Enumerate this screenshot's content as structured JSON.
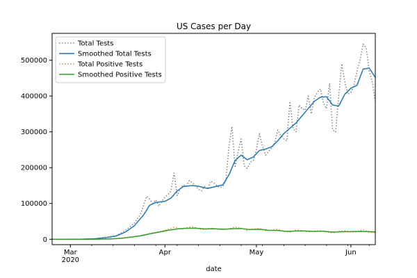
{
  "chart_data": {
    "type": "line",
    "title": "US Cases per Day",
    "xlabel": "date",
    "ylabel": "",
    "ylim": [
      -15000,
      575000
    ],
    "xlim": [
      "2020-02-24",
      "2020-06-09"
    ],
    "grid": false,
    "legend_position": "top-left",
    "x_ticks": [
      {
        "date": "2020-03-01",
        "label": "Mar",
        "sublabel": "2020"
      },
      {
        "date": "2020-04-01",
        "label": "Apr",
        "sublabel": ""
      },
      {
        "date": "2020-05-01",
        "label": "May",
        "sublabel": ""
      },
      {
        "date": "2020-06-01",
        "label": "Jun",
        "sublabel": ""
      }
    ],
    "y_ticks": [
      0,
      100000,
      200000,
      300000,
      400000,
      500000
    ],
    "series": [
      {
        "name": "Total Tests",
        "color": "#7f7f7f",
        "dashed": true,
        "points": [
          [
            "2020-02-24",
            0
          ],
          [
            "2020-03-01",
            100
          ],
          [
            "2020-03-05",
            500
          ],
          [
            "2020-03-09",
            1500
          ],
          [
            "2020-03-13",
            6000
          ],
          [
            "2020-03-16",
            10000
          ],
          [
            "2020-03-19",
            25000
          ],
          [
            "2020-03-22",
            45000
          ],
          [
            "2020-03-24",
            70000
          ],
          [
            "2020-03-26",
            120000
          ],
          [
            "2020-03-27",
            112000
          ],
          [
            "2020-03-28",
            100000
          ],
          [
            "2020-03-29",
            110000
          ],
          [
            "2020-03-30",
            92000
          ],
          [
            "2020-03-31",
            105000
          ],
          [
            "2020-04-01",
            118000
          ],
          [
            "2020-04-02",
            125000
          ],
          [
            "2020-04-03",
            135000
          ],
          [
            "2020-04-04",
            185000
          ],
          [
            "2020-04-05",
            122000
          ],
          [
            "2020-04-06",
            140000
          ],
          [
            "2020-04-07",
            152000
          ],
          [
            "2020-04-08",
            148000
          ],
          [
            "2020-04-09",
            164000
          ],
          [
            "2020-04-10",
            158000
          ],
          [
            "2020-04-11",
            150000
          ],
          [
            "2020-04-12",
            140000
          ],
          [
            "2020-04-13",
            135000
          ],
          [
            "2020-04-14",
            148000
          ],
          [
            "2020-04-15",
            140000
          ],
          [
            "2020-04-16",
            162000
          ],
          [
            "2020-04-17",
            158000
          ],
          [
            "2020-04-18",
            150000
          ],
          [
            "2020-04-19",
            144000
          ],
          [
            "2020-04-20",
            148000
          ],
          [
            "2020-04-21",
            165000
          ],
          [
            "2020-04-22",
            260000
          ],
          [
            "2020-04-23",
            315000
          ],
          [
            "2020-04-24",
            200000
          ],
          [
            "2020-04-25",
            245000
          ],
          [
            "2020-04-26",
            280000
          ],
          [
            "2020-04-27",
            205000
          ],
          [
            "2020-04-28",
            198000
          ],
          [
            "2020-04-29",
            215000
          ],
          [
            "2020-04-30",
            220000
          ],
          [
            "2020-05-01",
            250000
          ],
          [
            "2020-05-02",
            295000
          ],
          [
            "2020-05-03",
            260000
          ],
          [
            "2020-05-04",
            235000
          ],
          [
            "2020-05-05",
            245000
          ],
          [
            "2020-05-06",
            255000
          ],
          [
            "2020-05-07",
            270000
          ],
          [
            "2020-05-08",
            305000
          ],
          [
            "2020-05-09",
            290000
          ],
          [
            "2020-05-10",
            280000
          ],
          [
            "2020-05-11",
            275000
          ],
          [
            "2020-05-12",
            385000
          ],
          [
            "2020-05-13",
            310000
          ],
          [
            "2020-05-14",
            300000
          ],
          [
            "2020-05-15",
            375000
          ],
          [
            "2020-05-16",
            365000
          ],
          [
            "2020-05-17",
            360000
          ],
          [
            "2020-05-18",
            400000
          ],
          [
            "2020-05-19",
            350000
          ],
          [
            "2020-05-20",
            395000
          ],
          [
            "2020-05-21",
            410000
          ],
          [
            "2020-05-22",
            420000
          ],
          [
            "2020-05-23",
            380000
          ],
          [
            "2020-05-24",
            365000
          ],
          [
            "2020-05-25",
            435000
          ],
          [
            "2020-05-26",
            305000
          ],
          [
            "2020-05-27",
            300000
          ],
          [
            "2020-05-28",
            400000
          ],
          [
            "2020-05-29",
            490000
          ],
          [
            "2020-05-30",
            440000
          ],
          [
            "2020-05-31",
            405000
          ],
          [
            "2020-06-01",
            410000
          ],
          [
            "2020-06-02",
            430000
          ],
          [
            "2020-06-03",
            470000
          ],
          [
            "2020-06-04",
            500000
          ],
          [
            "2020-06-05",
            545000
          ],
          [
            "2020-06-06",
            535000
          ],
          [
            "2020-06-07",
            470000
          ],
          [
            "2020-06-08",
            440000
          ],
          [
            "2020-06-09",
            385000
          ]
        ]
      },
      {
        "name": "Smoothed Total Tests",
        "color": "#1f77b4",
        "dashed": false,
        "points": [
          [
            "2020-02-24",
            0
          ],
          [
            "2020-03-01",
            100
          ],
          [
            "2020-03-05",
            400
          ],
          [
            "2020-03-09",
            1500
          ],
          [
            "2020-03-13",
            5000
          ],
          [
            "2020-03-16",
            9000
          ],
          [
            "2020-03-19",
            20000
          ],
          [
            "2020-03-22",
            38000
          ],
          [
            "2020-03-25",
            68000
          ],
          [
            "2020-03-27",
            95000
          ],
          [
            "2020-03-29",
            103000
          ],
          [
            "2020-04-01",
            106000
          ],
          [
            "2020-04-03",
            115000
          ],
          [
            "2020-04-05",
            135000
          ],
          [
            "2020-04-07",
            147000
          ],
          [
            "2020-04-10",
            150000
          ],
          [
            "2020-04-12",
            148000
          ],
          [
            "2020-04-15",
            142000
          ],
          [
            "2020-04-18",
            148000
          ],
          [
            "2020-04-20",
            152000
          ],
          [
            "2020-04-22",
            180000
          ],
          [
            "2020-04-24",
            220000
          ],
          [
            "2020-04-26",
            235000
          ],
          [
            "2020-04-28",
            222000
          ],
          [
            "2020-04-30",
            230000
          ],
          [
            "2020-05-02",
            248000
          ],
          [
            "2020-05-04",
            252000
          ],
          [
            "2020-05-06",
            258000
          ],
          [
            "2020-05-08",
            275000
          ],
          [
            "2020-05-10",
            295000
          ],
          [
            "2020-05-12",
            310000
          ],
          [
            "2020-05-14",
            325000
          ],
          [
            "2020-05-16",
            345000
          ],
          [
            "2020-05-18",
            365000
          ],
          [
            "2020-05-20",
            385000
          ],
          [
            "2020-05-22",
            397000
          ],
          [
            "2020-05-24",
            398000
          ],
          [
            "2020-05-26",
            375000
          ],
          [
            "2020-05-28",
            372000
          ],
          [
            "2020-05-30",
            405000
          ],
          [
            "2020-06-01",
            422000
          ],
          [
            "2020-06-03",
            430000
          ],
          [
            "2020-06-05",
            475000
          ],
          [
            "2020-06-07",
            478000
          ],
          [
            "2020-06-09",
            452000
          ]
        ]
      },
      {
        "name": "Total Positive Tests",
        "color": "#ff7f0e",
        "dashed": true,
        "points": [
          [
            "2020-02-24",
            0
          ],
          [
            "2020-03-05",
            50
          ],
          [
            "2020-03-10",
            300
          ],
          [
            "2020-03-15",
            1500
          ],
          [
            "2020-03-18",
            3500
          ],
          [
            "2020-03-21",
            7000
          ],
          [
            "2020-03-24",
            10000
          ],
          [
            "2020-03-27",
            16000
          ],
          [
            "2020-03-30",
            21000
          ],
          [
            "2020-04-02",
            27000
          ],
          [
            "2020-04-04",
            34000
          ],
          [
            "2020-04-06",
            29000
          ],
          [
            "2020-04-08",
            32000
          ],
          [
            "2020-04-10",
            35000
          ],
          [
            "2020-04-12",
            29000
          ],
          [
            "2020-04-14",
            27000
          ],
          [
            "2020-04-16",
            31000
          ],
          [
            "2020-04-18",
            29000
          ],
          [
            "2020-04-20",
            27000
          ],
          [
            "2020-04-22",
            29000
          ],
          [
            "2020-04-24",
            34000
          ],
          [
            "2020-04-26",
            31000
          ],
          [
            "2020-04-28",
            25000
          ],
          [
            "2020-04-30",
            29000
          ],
          [
            "2020-05-02",
            30000
          ],
          [
            "2020-05-04",
            24000
          ],
          [
            "2020-05-06",
            25000
          ],
          [
            "2020-05-08",
            28000
          ],
          [
            "2020-05-10",
            22000
          ],
          [
            "2020-05-12",
            20000
          ],
          [
            "2020-05-14",
            26000
          ],
          [
            "2020-05-16",
            24000
          ],
          [
            "2020-05-18",
            21000
          ],
          [
            "2020-05-20",
            23000
          ],
          [
            "2020-05-22",
            24000
          ],
          [
            "2020-05-24",
            20000
          ],
          [
            "2020-05-26",
            18000
          ],
          [
            "2020-05-28",
            22000
          ],
          [
            "2020-05-30",
            24000
          ],
          [
            "2020-06-01",
            20000
          ],
          [
            "2020-06-03",
            21000
          ],
          [
            "2020-06-05",
            27000
          ],
          [
            "2020-06-07",
            19000
          ],
          [
            "2020-06-09",
            19000
          ]
        ]
      },
      {
        "name": "Smoothed Positive Tests",
        "color": "#2ca02c",
        "dashed": false,
        "points": [
          [
            "2020-02-24",
            0
          ],
          [
            "2020-03-05",
            50
          ],
          [
            "2020-03-10",
            300
          ],
          [
            "2020-03-15",
            1200
          ],
          [
            "2020-03-18",
            3000
          ],
          [
            "2020-03-21",
            6000
          ],
          [
            "2020-03-24",
            9500
          ],
          [
            "2020-03-27",
            15000
          ],
          [
            "2020-03-30",
            20000
          ],
          [
            "2020-04-02",
            25000
          ],
          [
            "2020-04-05",
            29000
          ],
          [
            "2020-04-08",
            30500
          ],
          [
            "2020-04-11",
            31000
          ],
          [
            "2020-04-14",
            29000
          ],
          [
            "2020-04-17",
            29500
          ],
          [
            "2020-04-20",
            28000
          ],
          [
            "2020-04-23",
            29500
          ],
          [
            "2020-04-26",
            30000
          ],
          [
            "2020-04-29",
            27000
          ],
          [
            "2020-05-02",
            28000
          ],
          [
            "2020-05-05",
            25000
          ],
          [
            "2020-05-08",
            24500
          ],
          [
            "2020-05-11",
            22000
          ],
          [
            "2020-05-14",
            23000
          ],
          [
            "2020-05-17",
            23000
          ],
          [
            "2020-05-20",
            22000
          ],
          [
            "2020-05-23",
            22500
          ],
          [
            "2020-05-26",
            20000
          ],
          [
            "2020-05-29",
            21000
          ],
          [
            "2020-06-01",
            21500
          ],
          [
            "2020-06-04",
            22000
          ],
          [
            "2020-06-07",
            21500
          ],
          [
            "2020-06-09",
            20500
          ]
        ]
      }
    ]
  }
}
